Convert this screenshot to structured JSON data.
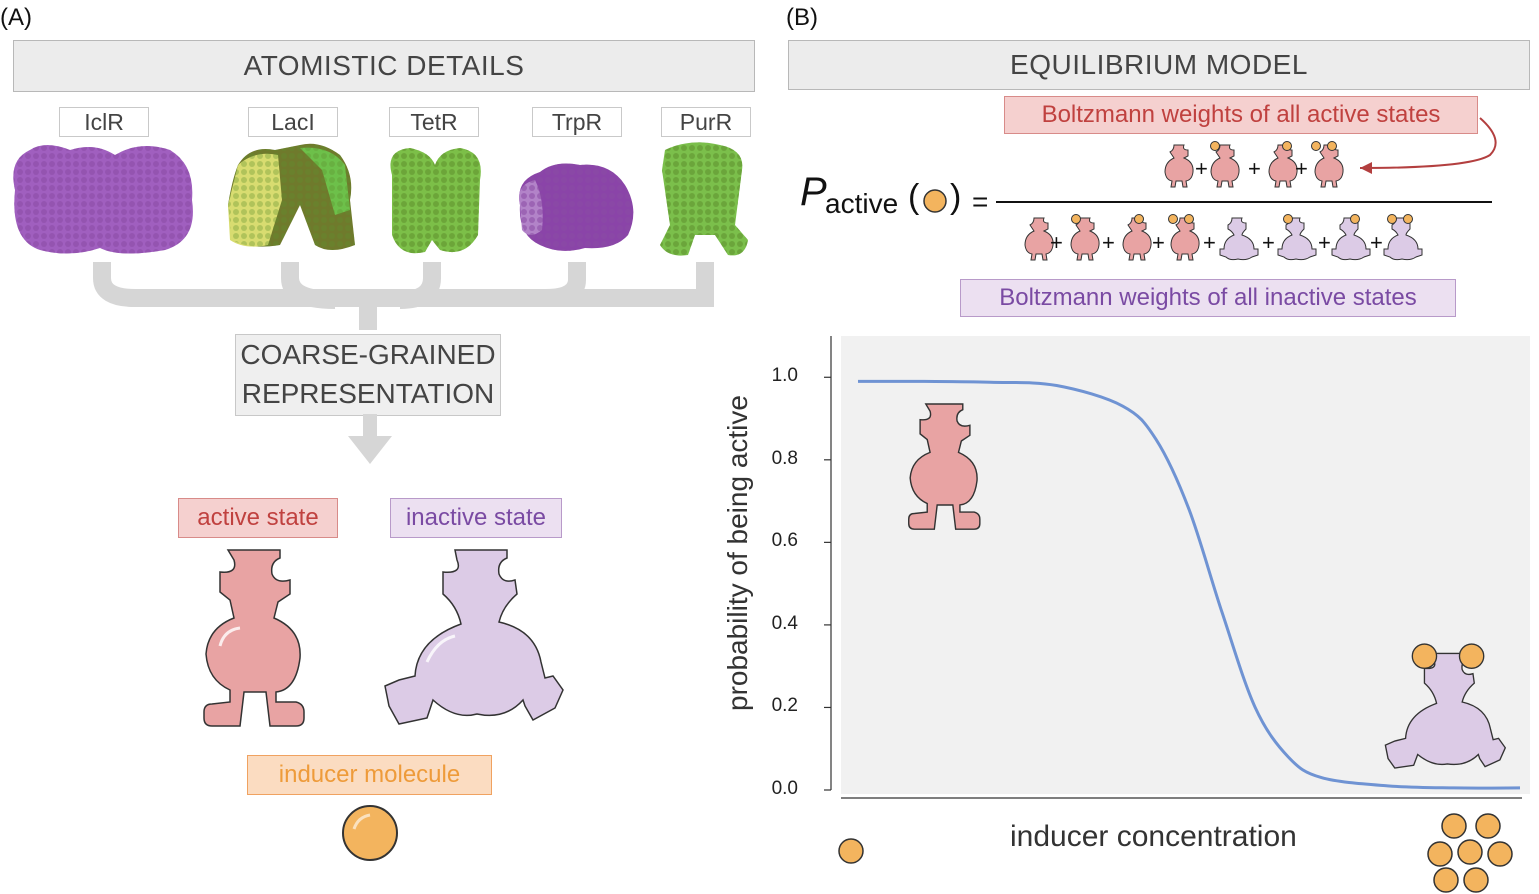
{
  "panel_a": {
    "label": "(A)",
    "title": "ATOMISTIC DETAILS",
    "proteins": [
      "IclR",
      "LacI",
      "TetR",
      "TrpR",
      "PurR"
    ],
    "coarse_grained": [
      "COARSE-GRAINED",
      "REPRESENTATION"
    ],
    "active_state": "active state",
    "inactive_state": "inactive state",
    "inducer": "inducer molecule"
  },
  "panel_b": {
    "label": "(B)",
    "title": "EQUILIBRIUM MODEL",
    "active_weights": "Boltzmann weights of all active states",
    "inactive_weights": "Boltzmann weights of all inactive states",
    "eq_symbol": "P",
    "eq_subscript": "active",
    "eq_equals": "=",
    "plus": "+",
    "open_paren": "(",
    "close_paren": ")"
  },
  "colors": {
    "active": "#e8a3a3",
    "active_dark": "#c97a7a",
    "inactive": "#dccbe6",
    "inactive_dark": "#b396c9",
    "inducer": "#f3b45e",
    "curve": "#6f93d3",
    "active_text": "#c0413f",
    "inactive_text": "#7a4aa3",
    "inducer_text": "#ee9b3a"
  },
  "chart_data": {
    "type": "line",
    "xlabel": "inducer concentration",
    "ylabel": "probability of being active",
    "ylim": [
      0.0,
      1.1
    ],
    "yticks": [
      "0.0",
      "0.2",
      "0.4",
      "0.6",
      "0.8",
      "1.0"
    ],
    "x": [
      0.0,
      0.1,
      0.2,
      0.3,
      0.4,
      0.45,
      0.5,
      0.55,
      0.6,
      0.65,
      0.7,
      0.8,
      0.9,
      1.0
    ],
    "series": [
      {
        "values": [
          0.99,
          0.99,
          0.988,
          0.98,
          0.93,
          0.85,
          0.68,
          0.43,
          0.2,
          0.08,
          0.03,
          0.01,
          0.005,
          0.005
        ]
      }
    ],
    "grid": false
  }
}
